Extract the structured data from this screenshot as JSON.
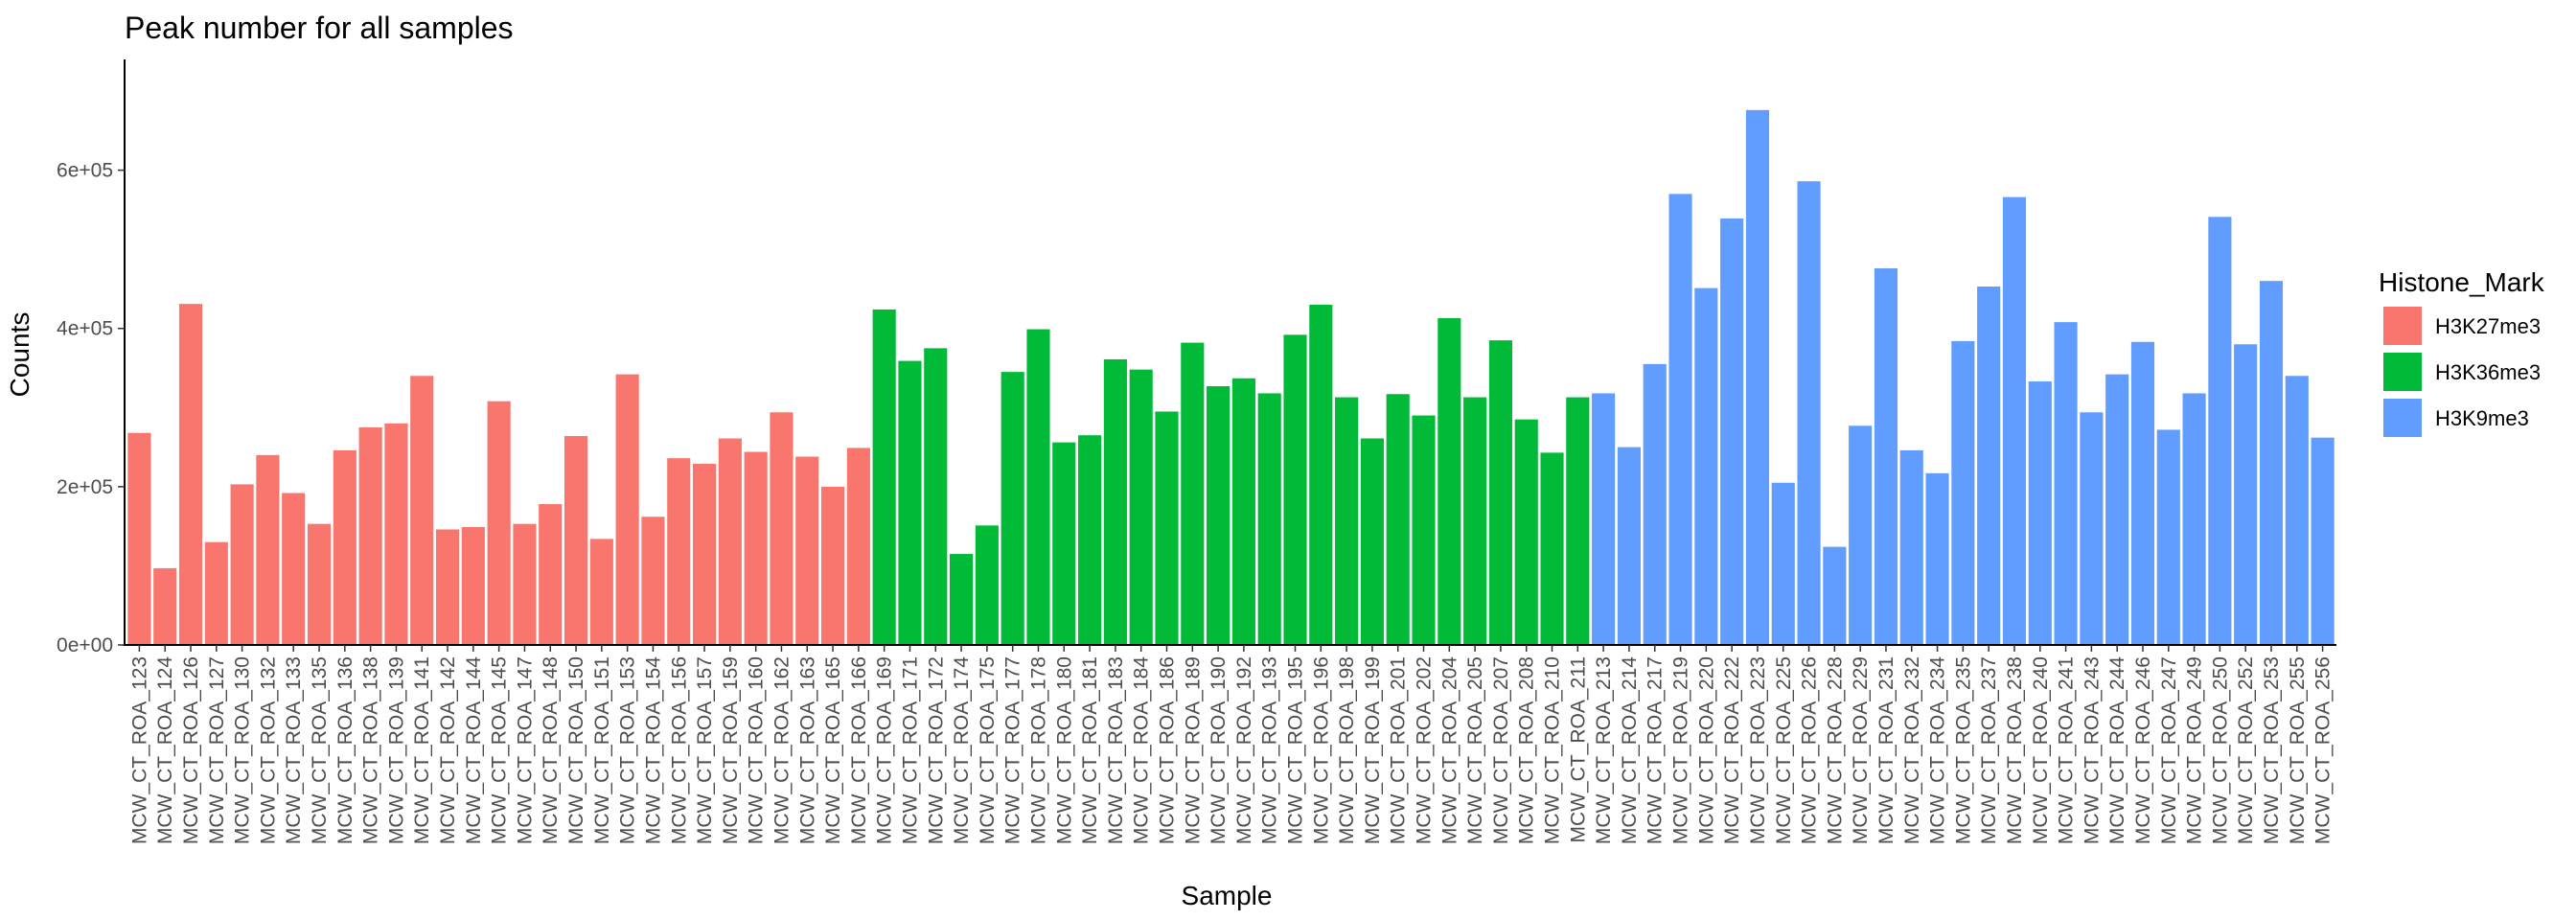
{
  "chart_data": {
    "type": "bar",
    "title": "Peak number for all samples",
    "xlabel": "Sample",
    "ylabel": "Counts",
    "ylim": [
      0,
      740000
    ],
    "yticks": [
      0,
      200000,
      400000,
      600000
    ],
    "ytick_labels": [
      "0e+00",
      "2e+05",
      "4e+05",
      "6e+05"
    ],
    "grid": false,
    "legend": {
      "title": "Histone_Mark",
      "placement": "right",
      "entries": [
        {
          "name": "H3K27me3",
          "color": "#F8766D"
        },
        {
          "name": "H3K36me3",
          "color": "#00BA38"
        },
        {
          "name": "H3K9me3",
          "color": "#619CFF"
        }
      ]
    },
    "categories": [
      "MCW_CT_ROA_123",
      "MCW_CT_ROA_124",
      "MCW_CT_ROA_126",
      "MCW_CT_ROA_127",
      "MCW_CT_ROA_130",
      "MCW_CT_ROA_132",
      "MCW_CT_ROA_133",
      "MCW_CT_ROA_135",
      "MCW_CT_ROA_136",
      "MCW_CT_ROA_138",
      "MCW_CT_ROA_139",
      "MCW_CT_ROA_141",
      "MCW_CT_ROA_142",
      "MCW_CT_ROA_144",
      "MCW_CT_ROA_145",
      "MCW_CT_ROA_147",
      "MCW_CT_ROA_148",
      "MCW_CT_ROA_150",
      "MCW_CT_ROA_151",
      "MCW_CT_ROA_153",
      "MCW_CT_ROA_154",
      "MCW_CT_ROA_156",
      "MCW_CT_ROA_157",
      "MCW_CT_ROA_159",
      "MCW_CT_ROA_160",
      "MCW_CT_ROA_162",
      "MCW_CT_ROA_163",
      "MCW_CT_ROA_165",
      "MCW_CT_ROA_166",
      "MCW_CT_ROA_169",
      "MCW_CT_ROA_171",
      "MCW_CT_ROA_172",
      "MCW_CT_ROA_174",
      "MCW_CT_ROA_175",
      "MCW_CT_ROA_177",
      "MCW_CT_ROA_178",
      "MCW_CT_ROA_180",
      "MCW_CT_ROA_181",
      "MCW_CT_ROA_183",
      "MCW_CT_ROA_184",
      "MCW_CT_ROA_186",
      "MCW_CT_ROA_189",
      "MCW_CT_ROA_190",
      "MCW_CT_ROA_192",
      "MCW_CT_ROA_193",
      "MCW_CT_ROA_195",
      "MCW_CT_ROA_196",
      "MCW_CT_ROA_198",
      "MCW_CT_ROA_199",
      "MCW_CT_ROA_201",
      "MCW_CT_ROA_202",
      "MCW_CT_ROA_204",
      "MCW_CT_ROA_205",
      "MCW_CT_ROA_207",
      "MCW_CT_ROA_208",
      "MCW_CT_ROA_210",
      "MCW_CT_ROA_211",
      "MCW_CT_ROA_213",
      "MCW_CT_ROA_214",
      "MCW_CT_ROA_217",
      "MCW_CT_ROA_219",
      "MCW_CT_ROA_220",
      "MCW_CT_ROA_222",
      "MCW_CT_ROA_223",
      "MCW_CT_ROA_225",
      "MCW_CT_ROA_226",
      "MCW_CT_ROA_228",
      "MCW_CT_ROA_229",
      "MCW_CT_ROA_231",
      "MCW_CT_ROA_232",
      "MCW_CT_ROA_234",
      "MCW_CT_ROA_235",
      "MCW_CT_ROA_237",
      "MCW_CT_ROA_238",
      "MCW_CT_ROA_240",
      "MCW_CT_ROA_241",
      "MCW_CT_ROA_243",
      "MCW_CT_ROA_244",
      "MCW_CT_ROA_246",
      "MCW_CT_ROA_247",
      "MCW_CT_ROA_249",
      "MCW_CT_ROA_250",
      "MCW_CT_ROA_252",
      "MCW_CT_ROA_253",
      "MCW_CT_ROA_255",
      "MCW_CT_ROA_256"
    ],
    "values": [
      268000,
      97000,
      431000,
      130000,
      203000,
      240000,
      192000,
      153000,
      246000,
      275000,
      280000,
      340000,
      146000,
      149000,
      308000,
      153000,
      178000,
      264000,
      134000,
      342000,
      162000,
      236000,
      229000,
      261000,
      244000,
      294000,
      238000,
      200000,
      249000,
      424000,
      359000,
      375000,
      115000,
      151000,
      345000,
      399000,
      256000,
      265000,
      361000,
      348000,
      295000,
      382000,
      327000,
      337000,
      318000,
      392000,
      430000,
      313000,
      261000,
      317000,
      290000,
      413000,
      313000,
      385000,
      285000,
      243000,
      313000,
      318000,
      250000,
      355000,
      570000,
      451000,
      539000,
      676000,
      205000,
      586000,
      124000,
      277000,
      476000,
      246000,
      217000,
      384000,
      453000,
      566000,
      333000,
      408000,
      294000,
      342000,
      383000,
      272000,
      318000,
      541000,
      380000,
      460000,
      340000,
      262000
    ],
    "groups": [
      "H3K27me3",
      "H3K27me3",
      "H3K27me3",
      "H3K27me3",
      "H3K27me3",
      "H3K27me3",
      "H3K27me3",
      "H3K27me3",
      "H3K27me3",
      "H3K27me3",
      "H3K27me3",
      "H3K27me3",
      "H3K27me3",
      "H3K27me3",
      "H3K27me3",
      "H3K27me3",
      "H3K27me3",
      "H3K27me3",
      "H3K27me3",
      "H3K27me3",
      "H3K27me3",
      "H3K27me3",
      "H3K27me3",
      "H3K27me3",
      "H3K27me3",
      "H3K27me3",
      "H3K27me3",
      "H3K27me3",
      "H3K27me3",
      "H3K36me3",
      "H3K36me3",
      "H3K36me3",
      "H3K36me3",
      "H3K36me3",
      "H3K36me3",
      "H3K36me3",
      "H3K36me3",
      "H3K36me3",
      "H3K36me3",
      "H3K36me3",
      "H3K36me3",
      "H3K36me3",
      "H3K36me3",
      "H3K36me3",
      "H3K36me3",
      "H3K36me3",
      "H3K36me3",
      "H3K36me3",
      "H3K36me3",
      "H3K36me3",
      "H3K36me3",
      "H3K36me3",
      "H3K36me3",
      "H3K36me3",
      "H3K36me3",
      "H3K36me3",
      "H3K36me3",
      "H3K9me3",
      "H3K9me3",
      "H3K9me3",
      "H3K9me3",
      "H3K9me3",
      "H3K9me3",
      "H3K9me3",
      "H3K9me3",
      "H3K9me3",
      "H3K9me3",
      "H3K9me3",
      "H3K9me3",
      "H3K9me3",
      "H3K9me3",
      "H3K9me3",
      "H3K9me3",
      "H3K9me3",
      "H3K9me3",
      "H3K9me3",
      "H3K9me3",
      "H3K9me3",
      "H3K9me3",
      "H3K9me3",
      "H3K9me3",
      "H3K9me3",
      "H3K9me3",
      "H3K9me3",
      "H3K9me3",
      "H3K9me3"
    ]
  }
}
